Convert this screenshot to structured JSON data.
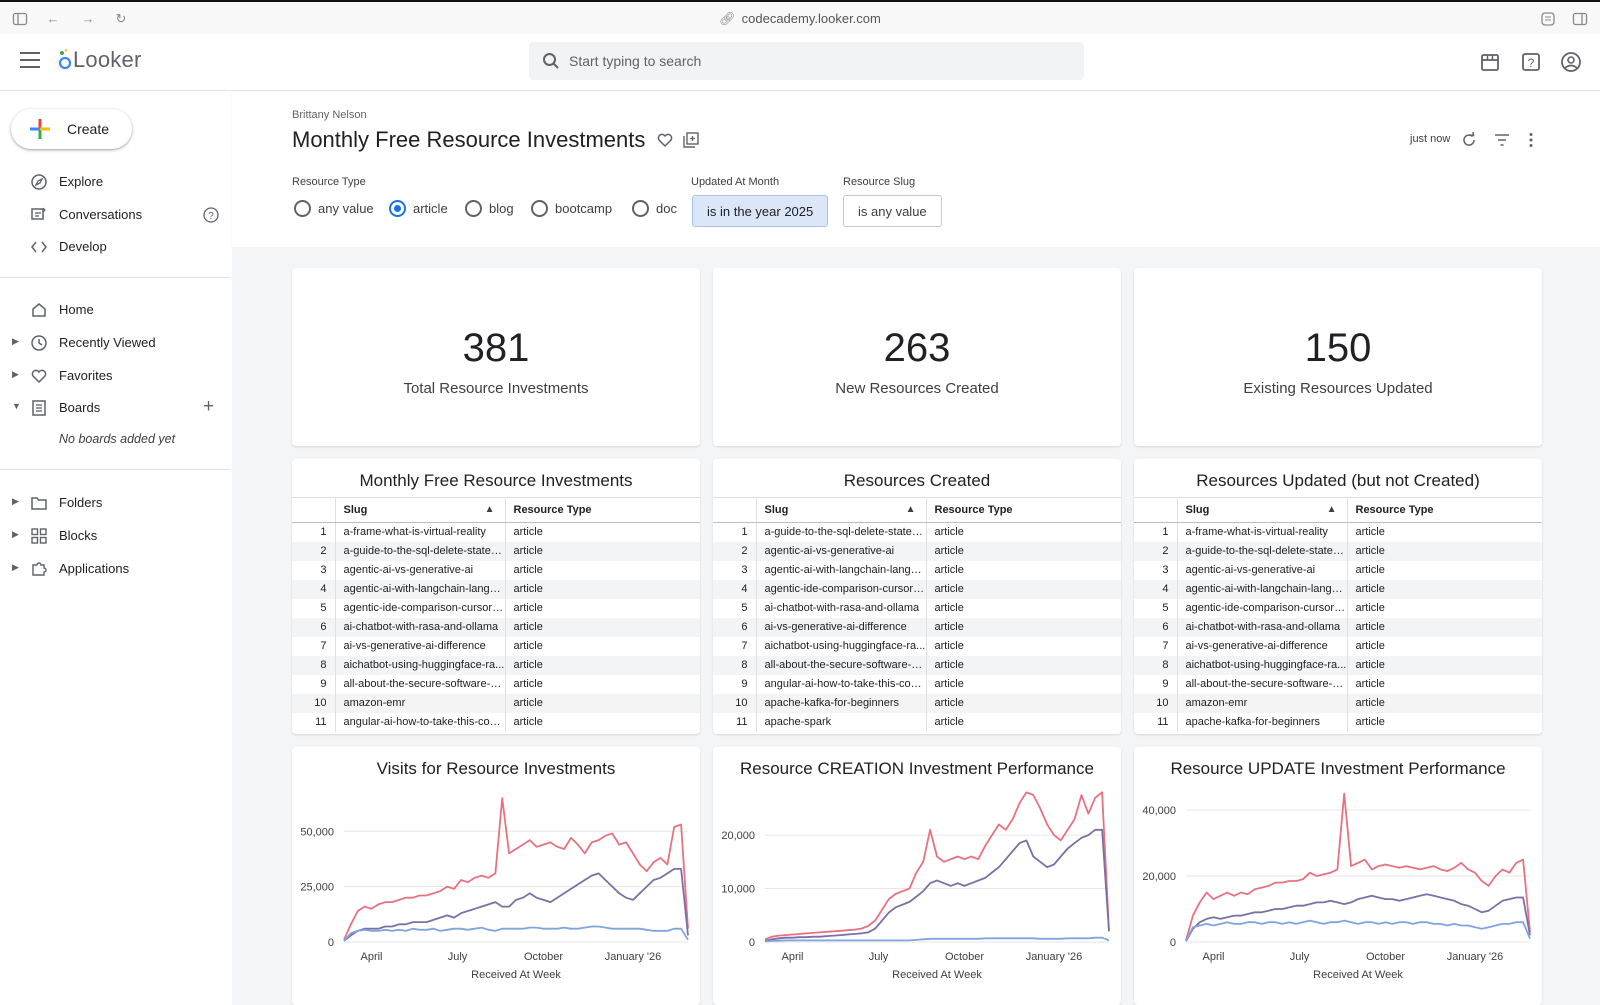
{
  "browser": {
    "url": "codecademy.looker.com"
  },
  "app": {
    "logo": "Looker",
    "search_placeholder": "Start typing to search"
  },
  "sidebar": {
    "create_label": "Create",
    "items": [
      {
        "label": "Explore",
        "icon": "compass-icon"
      },
      {
        "label": "Conversations",
        "icon": "conversations-icon"
      },
      {
        "label": "Develop",
        "icon": "code-icon"
      },
      {
        "label": "Home",
        "icon": "home-icon"
      },
      {
        "label": "Recently Viewed",
        "icon": "clock-icon"
      },
      {
        "label": "Favorites",
        "icon": "heart-icon"
      },
      {
        "label": "Boards",
        "icon": "board-icon"
      },
      {
        "label": "Folders",
        "icon": "folder-icon"
      },
      {
        "label": "Blocks",
        "icon": "blocks-icon"
      },
      {
        "label": "Applications",
        "icon": "puzzle-icon"
      }
    ],
    "no_boards": "No boards added yet"
  },
  "dashboard": {
    "owner": "Brittany Nelson",
    "title": "Monthly Free Resource Investments",
    "last_run": "just now"
  },
  "filters": {
    "resource_type": {
      "label": "Resource Type",
      "options": [
        "any value",
        "article",
        "blog",
        "bootcamp",
        "doc"
      ],
      "selected": "article"
    },
    "updated_at_month": {
      "label": "Updated At Month",
      "value": "is in the year 2025"
    },
    "resource_slug": {
      "label": "Resource Slug",
      "value": "is any value"
    }
  },
  "kpis": [
    {
      "value": "381",
      "label": "Total Resource Investments"
    },
    {
      "value": "263",
      "label": "New Resources Created"
    },
    {
      "value": "150",
      "label": "Existing Resources Updated"
    }
  ],
  "tables": [
    {
      "title": "Monthly Free Resource Investments",
      "columns": [
        "Slug",
        "Resource Type"
      ],
      "rows": [
        [
          "1",
          "a-frame-what-is-virtual-reality",
          "article"
        ],
        [
          "2",
          "a-guide-to-the-sql-delete-statem...",
          "article"
        ],
        [
          "3",
          "agentic-ai-vs-generative-ai",
          "article"
        ],
        [
          "4",
          "agentic-ai-with-langchain-langgr...",
          "article"
        ],
        [
          "5",
          "agentic-ide-comparison-cursor-...",
          "article"
        ],
        [
          "6",
          "ai-chatbot-with-rasa-and-ollama",
          "article"
        ],
        [
          "7",
          "ai-vs-generative-ai-difference",
          "article"
        ],
        [
          "8",
          "aichatbot-using-huggingface-ra...",
          "article"
        ],
        [
          "9",
          "all-about-the-secure-software-d...",
          "article"
        ],
        [
          "10",
          "amazon-emr",
          "article"
        ],
        [
          "11",
          "angular-ai-how-to-take-this-cour...",
          "article"
        ]
      ]
    },
    {
      "title": "Resources Created",
      "columns": [
        "Slug",
        "Resource Type"
      ],
      "rows": [
        [
          "1",
          "a-guide-to-the-sql-delete-statem...",
          "article"
        ],
        [
          "2",
          "agentic-ai-vs-generative-ai",
          "article"
        ],
        [
          "3",
          "agentic-ai-with-langchain-langgr...",
          "article"
        ],
        [
          "4",
          "agentic-ide-comparison-cursor-...",
          "article"
        ],
        [
          "5",
          "ai-chatbot-with-rasa-and-ollama",
          "article"
        ],
        [
          "6",
          "ai-vs-generative-ai-difference",
          "article"
        ],
        [
          "7",
          "aichatbot-using-huggingface-ra...",
          "article"
        ],
        [
          "8",
          "all-about-the-secure-software-d...",
          "article"
        ],
        [
          "9",
          "angular-ai-how-to-take-this-cour...",
          "article"
        ],
        [
          "10",
          "apache-kafka-for-beginners",
          "article"
        ],
        [
          "11",
          "apache-spark",
          "article"
        ]
      ]
    },
    {
      "title": "Resources Updated (but not Created)",
      "columns": [
        "Slug",
        "Resource Type"
      ],
      "rows": [
        [
          "1",
          "a-frame-what-is-virtual-reality",
          "article"
        ],
        [
          "2",
          "a-guide-to-the-sql-delete-statem...",
          "article"
        ],
        [
          "3",
          "agentic-ai-vs-generative-ai",
          "article"
        ],
        [
          "4",
          "agentic-ai-with-langchain-langgr...",
          "article"
        ],
        [
          "5",
          "agentic-ide-comparison-cursor-...",
          "article"
        ],
        [
          "6",
          "ai-chatbot-with-rasa-and-ollama",
          "article"
        ],
        [
          "7",
          "ai-vs-generative-ai-difference",
          "article"
        ],
        [
          "8",
          "aichatbot-using-huggingface-ra...",
          "article"
        ],
        [
          "9",
          "all-about-the-secure-software-d...",
          "article"
        ],
        [
          "10",
          "amazon-emr",
          "article"
        ],
        [
          "11",
          "apache-kafka-for-beginners",
          "article"
        ]
      ]
    }
  ],
  "chart_data": [
    {
      "type": "line",
      "title": "Visits for Resource Investments",
      "xlabel": "Received At Week",
      "x_ticks": [
        "April",
        "July",
        "October",
        "January '26"
      ],
      "y_ticks": [
        "0",
        "25,000",
        "50,000"
      ],
      "ylim": [
        0,
        70000
      ],
      "x": [
        0,
        1,
        2,
        3,
        4,
        5,
        6,
        7,
        8,
        9,
        10,
        11,
        12,
        13,
        14,
        15,
        16,
        17,
        18,
        19,
        20,
        21,
        22,
        23,
        24,
        25,
        26,
        27,
        28,
        29,
        30,
        31,
        32,
        33,
        34,
        35,
        36,
        37,
        38,
        39,
        40,
        41,
        42,
        43,
        44,
        45,
        46,
        47,
        48,
        49,
        50
      ],
      "series": [
        {
          "color": "#e8717f",
          "values": [
            1000,
            8000,
            14000,
            16000,
            15000,
            17000,
            18000,
            18000,
            19000,
            20000,
            20000,
            21000,
            21000,
            22000,
            23000,
            25000,
            24000,
            28000,
            27000,
            29000,
            30000,
            29000,
            31000,
            65000,
            40000,
            42000,
            44000,
            46000,
            43000,
            44000,
            45000,
            43000,
            42000,
            47000,
            44000,
            40000,
            45000,
            46000,
            48000,
            49000,
            44000,
            45000,
            40000,
            35000,
            32000,
            36000,
            38000,
            35000,
            52000,
            53000,
            6000
          ]
        },
        {
          "color": "#7b6fa6",
          "values": [
            500,
            3000,
            5000,
            6000,
            6000,
            6000,
            7000,
            7000,
            8000,
            8000,
            9000,
            9000,
            9000,
            10000,
            11000,
            12000,
            11000,
            13000,
            14000,
            15000,
            16000,
            17000,
            18000,
            16000,
            16000,
            19000,
            20000,
            22000,
            20000,
            19000,
            18000,
            20000,
            22000,
            24000,
            26000,
            28000,
            30000,
            31000,
            28000,
            25000,
            22000,
            20000,
            19000,
            22000,
            25000,
            28000,
            29000,
            31000,
            33000,
            33000,
            3000
          ]
        },
        {
          "color": "#7fa4e0",
          "values": [
            500,
            4000,
            5000,
            5500,
            5000,
            5000,
            5500,
            5000,
            5500,
            5000,
            6000,
            5500,
            5500,
            6000,
            5000,
            5500,
            6000,
            6000,
            5500,
            6000,
            6500,
            5500,
            5000,
            6000,
            6000,
            6000,
            6000,
            6500,
            6500,
            6000,
            6000,
            6000,
            6500,
            6000,
            6000,
            6500,
            7000,
            7000,
            6500,
            6000,
            6000,
            6000,
            6000,
            6000,
            5500,
            5000,
            5000,
            5000,
            6000,
            6000,
            1000
          ]
        }
      ]
    },
    {
      "type": "line",
      "title": "Resource CREATION Investment Performance",
      "xlabel": "Received At Week",
      "x_ticks": [
        "April",
        "July",
        "October",
        "January '26"
      ],
      "y_ticks": [
        "0",
        "10,000",
        "20,000"
      ],
      "ylim": [
        0,
        29000
      ],
      "x": [
        0,
        1,
        2,
        3,
        4,
        5,
        6,
        7,
        8,
        9,
        10,
        11,
        12,
        13,
        14,
        15,
        16,
        17,
        18,
        19,
        20,
        21,
        22,
        23,
        24,
        25,
        26,
        27,
        28,
        29,
        30,
        31,
        32,
        33,
        34,
        35,
        36,
        37,
        38,
        39,
        40,
        41,
        42,
        43,
        44,
        45,
        46,
        47,
        48,
        49,
        50
      ],
      "series": [
        {
          "color": "#e8717f",
          "values": [
            500,
            1000,
            1200,
            1300,
            1400,
            1500,
            1600,
            1700,
            1800,
            1900,
            2000,
            2100,
            2200,
            2300,
            2500,
            3000,
            4000,
            6000,
            8000,
            9000,
            9500,
            10000,
            13000,
            15000,
            21000,
            16000,
            15000,
            15500,
            16000,
            15500,
            16000,
            15500,
            18000,
            20000,
            22000,
            21000,
            23000,
            26000,
            28000,
            27500,
            25000,
            22000,
            20000,
            19000,
            21000,
            23000,
            27500,
            24000,
            27000,
            28000,
            2000
          ]
        },
        {
          "color": "#7b6fa6",
          "values": [
            200,
            500,
            700,
            800,
            800,
            900,
            900,
            1000,
            1000,
            1100,
            1200,
            1300,
            1400,
            1500,
            1600,
            1800,
            2500,
            4000,
            5500,
            6500,
            7000,
            7500,
            8500,
            9500,
            11000,
            11500,
            11000,
            10500,
            11000,
            10500,
            11000,
            11500,
            12000,
            13000,
            14000,
            15500,
            17000,
            18500,
            19000,
            16000,
            15000,
            14000,
            14500,
            16000,
            17500,
            18500,
            19500,
            20000,
            21000,
            21000,
            2000
          ]
        },
        {
          "color": "#7fa4e0",
          "values": [
            100,
            200,
            250,
            300,
            300,
            300,
            300,
            300,
            300,
            300,
            300,
            300,
            300,
            300,
            300,
            300,
            300,
            300,
            300,
            300,
            300,
            300,
            400,
            500,
            600,
            600,
            600,
            600,
            600,
            600,
            600,
            600,
            700,
            700,
            700,
            700,
            700,
            700,
            700,
            700,
            600,
            600,
            600,
            600,
            700,
            700,
            700,
            700,
            800,
            800,
            300
          ]
        }
      ]
    },
    {
      "type": "line",
      "title": "Resource UPDATE Investment Performance",
      "xlabel": "Received At Week",
      "x_ticks": [
        "April",
        "July",
        "October",
        "January '26"
      ],
      "y_ticks": [
        "0",
        "20,000",
        "40,000"
      ],
      "ylim": [
        0,
        47000
      ],
      "x": [
        0,
        1,
        2,
        3,
        4,
        5,
        6,
        7,
        8,
        9,
        10,
        11,
        12,
        13,
        14,
        15,
        16,
        17,
        18,
        19,
        20,
        21,
        22,
        23,
        24,
        25,
        26,
        27,
        28,
        29,
        30,
        31,
        32,
        33,
        34,
        35,
        36,
        37,
        38,
        39,
        40,
        41,
        42,
        43,
        44,
        45,
        46,
        47,
        48,
        49,
        50
      ],
      "series": [
        {
          "color": "#e8717f",
          "values": [
            500,
            8000,
            12000,
            15000,
            13000,
            14000,
            15000,
            14000,
            15000,
            14500,
            16000,
            16500,
            17000,
            18000,
            18000,
            18500,
            18500,
            19000,
            21000,
            20000,
            20500,
            21000,
            22000,
            45000,
            23000,
            24000,
            25000,
            22000,
            23000,
            23500,
            23000,
            22500,
            23000,
            22500,
            22000,
            22500,
            23000,
            22000,
            21500,
            22500,
            24000,
            22000,
            21000,
            18500,
            17000,
            20000,
            22000,
            21000,
            24000,
            25000,
            3000
          ]
        },
        {
          "color": "#7b6fa6",
          "values": [
            200,
            4000,
            6000,
            7000,
            7500,
            7000,
            7500,
            8000,
            8000,
            8500,
            9000,
            9000,
            9500,
            10000,
            10000,
            10500,
            11000,
            11000,
            11500,
            12000,
            12000,
            12500,
            12000,
            11500,
            12000,
            13000,
            13500,
            14000,
            13500,
            13000,
            13000,
            12500,
            13000,
            13500,
            14000,
            14500,
            14000,
            13500,
            13000,
            12500,
            11500,
            11000,
            10000,
            9000,
            9500,
            11000,
            12500,
            13000,
            13500,
            13500,
            2000
          ]
        },
        {
          "color": "#7fa4e0",
          "values": [
            200,
            4500,
            5000,
            5500,
            5000,
            5500,
            6000,
            5500,
            5500,
            6000,
            6000,
            5500,
            6000,
            6000,
            5500,
            6000,
            5500,
            6000,
            6500,
            6000,
            5500,
            6000,
            6000,
            6500,
            6000,
            5500,
            6000,
            6000,
            5500,
            6000,
            5500,
            6000,
            6000,
            5500,
            6000,
            6000,
            5500,
            5500,
            5000,
            5500,
            5000,
            5000,
            4500,
            4000,
            4500,
            5000,
            5500,
            5500,
            6000,
            6000,
            1000
          ]
        }
      ]
    }
  ]
}
